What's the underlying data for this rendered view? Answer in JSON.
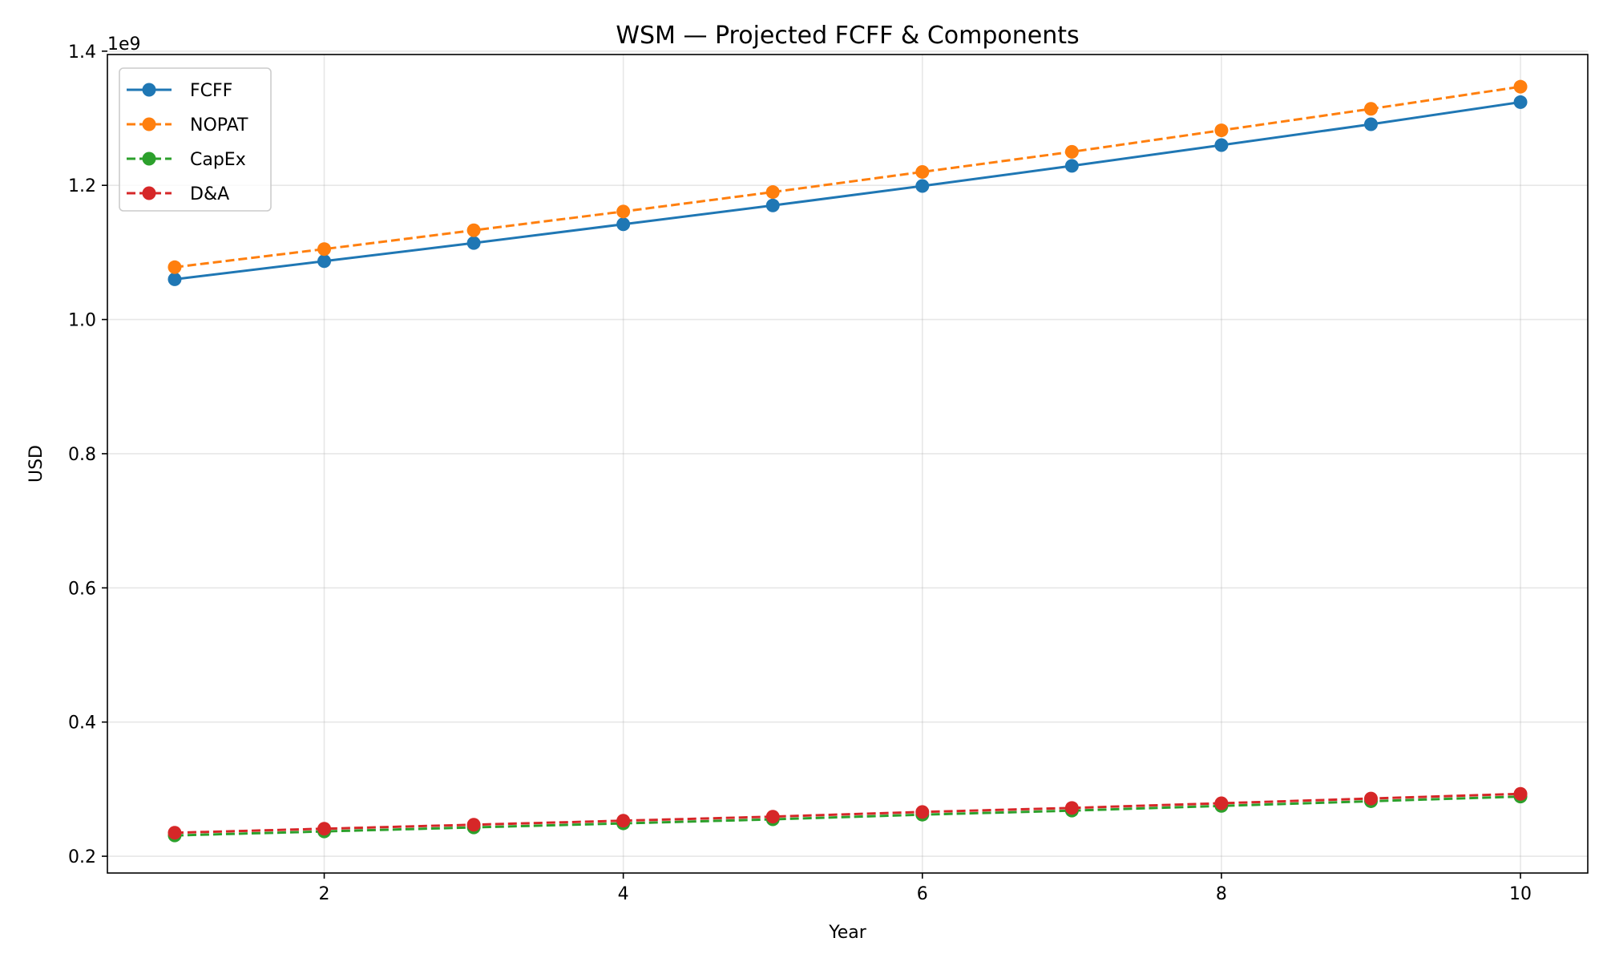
{
  "chart_data": {
    "type": "line",
    "title": "WSM — Projected FCFF & Components",
    "xlabel": "Year",
    "ylabel": "USD",
    "y_offset_label": "1e9",
    "x": [
      1,
      2,
      3,
      4,
      5,
      6,
      7,
      8,
      9,
      10
    ],
    "xlim": [
      0.55,
      10.45
    ],
    "ylim": [
      0.175,
      1.395
    ],
    "x_ticks": [
      2,
      4,
      6,
      8,
      10
    ],
    "x_tick_labels": [
      "2",
      "4",
      "6",
      "8",
      "10"
    ],
    "y_ticks": [
      0.2,
      0.4,
      0.6,
      0.8,
      1.0,
      1.2,
      1.4
    ],
    "y_tick_labels": [
      "0.2",
      "0.4",
      "0.6",
      "0.8",
      "1.0",
      "1.2",
      "1.4"
    ],
    "grid": true,
    "legend_position": "upper-left",
    "series": [
      {
        "name": "FCFF",
        "color": "#1f77b4",
        "style": "solid",
        "values": [
          1.06,
          1.087,
          1.114,
          1.142,
          1.17,
          1.199,
          1.229,
          1.26,
          1.291,
          1.324
        ]
      },
      {
        "name": "NOPAT",
        "color": "#ff7f0e",
        "style": "dashed",
        "values": [
          1.078,
          1.105,
          1.133,
          1.161,
          1.19,
          1.22,
          1.25,
          1.282,
          1.314,
          1.347
        ]
      },
      {
        "name": "CapEx",
        "color": "#2ca02c",
        "style": "dashed",
        "values": [
          0.231,
          0.237,
          0.243,
          0.249,
          0.255,
          0.262,
          0.268,
          0.275,
          0.282,
          0.289
        ]
      },
      {
        "name": "D&A",
        "color": "#d62728",
        "style": "dashed",
        "values": [
          0.235,
          0.241,
          0.247,
          0.253,
          0.259,
          0.266,
          0.272,
          0.279,
          0.286,
          0.293
        ]
      }
    ]
  }
}
